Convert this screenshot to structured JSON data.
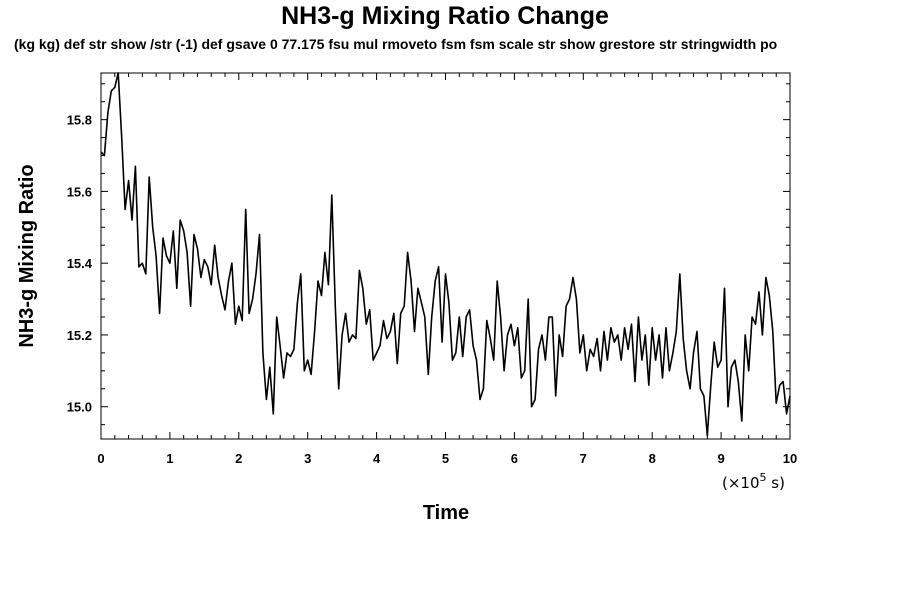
{
  "chart_data": {
    "type": "line",
    "title": "NH3-g Mixing Ratio Change",
    "subtitle": "(kg kg) def str show /str (-1) def gsave 0 77.175 fsu mul rmoveto fsm fsm scale str show grestore str stringwidth po",
    "xlabel": "Time",
    "ylabel": "NH3-g Mixing Ratio",
    "x_scale_note": "(×10",
    "x_scale_exp": "5",
    "x_scale_unit": " s)",
    "xlim": [
      0,
      10
    ],
    "ylim": [
      14.91,
      15.93
    ],
    "x_ticks": [
      "0",
      "1",
      "2",
      "3",
      "4",
      "5",
      "6",
      "7",
      "8",
      "9",
      "10"
    ],
    "y_ticks": [
      "15.0",
      "15.2",
      "15.4",
      "15.6",
      "15.8"
    ],
    "grid": false,
    "series": [
      {
        "values": [
          [
            0.0,
            15.71
          ],
          [
            0.05,
            15.7
          ],
          [
            0.1,
            15.82
          ],
          [
            0.15,
            15.88
          ],
          [
            0.2,
            15.89
          ],
          [
            0.25,
            15.93
          ],
          [
            0.3,
            15.75
          ],
          [
            0.35,
            15.55
          ],
          [
            0.4,
            15.63
          ],
          [
            0.45,
            15.52
          ],
          [
            0.5,
            15.67
          ],
          [
            0.55,
            15.39
          ],
          [
            0.6,
            15.4
          ],
          [
            0.65,
            15.37
          ],
          [
            0.7,
            15.64
          ],
          [
            0.75,
            15.5
          ],
          [
            0.8,
            15.42
          ],
          [
            0.85,
            15.26
          ],
          [
            0.9,
            15.47
          ],
          [
            0.95,
            15.42
          ],
          [
            1.0,
            15.4
          ],
          [
            1.05,
            15.49
          ],
          [
            1.1,
            15.33
          ],
          [
            1.15,
            15.52
          ],
          [
            1.2,
            15.49
          ],
          [
            1.25,
            15.43
          ],
          [
            1.3,
            15.28
          ],
          [
            1.35,
            15.48
          ],
          [
            1.4,
            15.44
          ],
          [
            1.45,
            15.36
          ],
          [
            1.5,
            15.41
          ],
          [
            1.55,
            15.39
          ],
          [
            1.6,
            15.34
          ],
          [
            1.65,
            15.45
          ],
          [
            1.7,
            15.36
          ],
          [
            1.75,
            15.31
          ],
          [
            1.8,
            15.27
          ],
          [
            1.85,
            15.35
          ],
          [
            1.9,
            15.4
          ],
          [
            1.95,
            15.23
          ],
          [
            2.0,
            15.28
          ],
          [
            2.05,
            15.24
          ],
          [
            2.1,
            15.55
          ],
          [
            2.15,
            15.26
          ],
          [
            2.2,
            15.3
          ],
          [
            2.25,
            15.37
          ],
          [
            2.3,
            15.48
          ],
          [
            2.35,
            15.15
          ],
          [
            2.4,
            15.02
          ],
          [
            2.45,
            15.11
          ],
          [
            2.5,
            14.98
          ],
          [
            2.55,
            15.25
          ],
          [
            2.6,
            15.17
          ],
          [
            2.65,
            15.08
          ],
          [
            2.7,
            15.15
          ],
          [
            2.75,
            15.14
          ],
          [
            2.8,
            15.16
          ],
          [
            2.85,
            15.29
          ],
          [
            2.9,
            15.37
          ],
          [
            2.95,
            15.1
          ],
          [
            3.0,
            15.13
          ],
          [
            3.05,
            15.09
          ],
          [
            3.1,
            15.21
          ],
          [
            3.15,
            15.35
          ],
          [
            3.2,
            15.31
          ],
          [
            3.25,
            15.43
          ],
          [
            3.3,
            15.34
          ],
          [
            3.35,
            15.59
          ],
          [
            3.4,
            15.28
          ],
          [
            3.45,
            15.05
          ],
          [
            3.5,
            15.2
          ],
          [
            3.55,
            15.26
          ],
          [
            3.6,
            15.18
          ],
          [
            3.65,
            15.2
          ],
          [
            3.7,
            15.19
          ],
          [
            3.75,
            15.38
          ],
          [
            3.8,
            15.33
          ],
          [
            3.85,
            15.23
          ],
          [
            3.9,
            15.27
          ],
          [
            3.95,
            15.13
          ],
          [
            4.0,
            15.15
          ],
          [
            4.05,
            15.17
          ],
          [
            4.1,
            15.24
          ],
          [
            4.15,
            15.19
          ],
          [
            4.2,
            15.21
          ],
          [
            4.25,
            15.26
          ],
          [
            4.3,
            15.12
          ],
          [
            4.35,
            15.26
          ],
          [
            4.4,
            15.28
          ],
          [
            4.45,
            15.43
          ],
          [
            4.5,
            15.35
          ],
          [
            4.55,
            15.21
          ],
          [
            4.6,
            15.33
          ],
          [
            4.65,
            15.29
          ],
          [
            4.7,
            15.25
          ],
          [
            4.75,
            15.09
          ],
          [
            4.8,
            15.25
          ],
          [
            4.85,
            15.35
          ],
          [
            4.9,
            15.39
          ],
          [
            4.95,
            15.18
          ],
          [
            5.0,
            15.37
          ],
          [
            5.05,
            15.29
          ],
          [
            5.1,
            15.13
          ],
          [
            5.15,
            15.15
          ],
          [
            5.2,
            15.25
          ],
          [
            5.25,
            15.14
          ],
          [
            5.3,
            15.25
          ],
          [
            5.35,
            15.27
          ],
          [
            5.4,
            15.17
          ],
          [
            5.45,
            15.13
          ],
          [
            5.5,
            15.02
          ],
          [
            5.55,
            15.05
          ],
          [
            5.6,
            15.24
          ],
          [
            5.65,
            15.19
          ],
          [
            5.7,
            15.13
          ],
          [
            5.75,
            15.35
          ],
          [
            5.8,
            15.25
          ],
          [
            5.85,
            15.1
          ],
          [
            5.9,
            15.2
          ],
          [
            5.95,
            15.23
          ],
          [
            6.0,
            15.17
          ],
          [
            6.05,
            15.22
          ],
          [
            6.1,
            15.08
          ],
          [
            6.15,
            15.1
          ],
          [
            6.2,
            15.3
          ],
          [
            6.25,
            15.0
          ],
          [
            6.3,
            15.02
          ],
          [
            6.35,
            15.16
          ],
          [
            6.4,
            15.2
          ],
          [
            6.45,
            15.13
          ],
          [
            6.5,
            15.25
          ],
          [
            6.55,
            15.25
          ],
          [
            6.6,
            15.03
          ],
          [
            6.65,
            15.2
          ],
          [
            6.7,
            15.14
          ],
          [
            6.75,
            15.28
          ],
          [
            6.8,
            15.3
          ],
          [
            6.85,
            15.36
          ],
          [
            6.9,
            15.3
          ],
          [
            6.95,
            15.15
          ],
          [
            7.0,
            15.2
          ],
          [
            7.05,
            15.1
          ],
          [
            7.1,
            15.16
          ],
          [
            7.15,
            15.14
          ],
          [
            7.2,
            15.19
          ],
          [
            7.25,
            15.1
          ],
          [
            7.3,
            15.21
          ],
          [
            7.35,
            15.13
          ],
          [
            7.4,
            15.22
          ],
          [
            7.45,
            15.18
          ],
          [
            7.5,
            15.2
          ],
          [
            7.55,
            15.13
          ],
          [
            7.6,
            15.22
          ],
          [
            7.65,
            15.16
          ],
          [
            7.7,
            15.23
          ],
          [
            7.75,
            15.07
          ],
          [
            7.8,
            15.25
          ],
          [
            7.85,
            15.13
          ],
          [
            7.9,
            15.2
          ],
          [
            7.95,
            15.06
          ],
          [
            8.0,
            15.22
          ],
          [
            8.05,
            15.13
          ],
          [
            8.1,
            15.2
          ],
          [
            8.15,
            15.08
          ],
          [
            8.2,
            15.22
          ],
          [
            8.25,
            15.1
          ],
          [
            8.3,
            15.15
          ],
          [
            8.35,
            15.21
          ],
          [
            8.4,
            15.37
          ],
          [
            8.45,
            15.19
          ],
          [
            8.5,
            15.1
          ],
          [
            8.55,
            15.05
          ],
          [
            8.6,
            15.15
          ],
          [
            8.65,
            15.21
          ],
          [
            8.7,
            15.05
          ],
          [
            8.75,
            15.03
          ],
          [
            8.8,
            14.92
          ],
          [
            8.85,
            15.06
          ],
          [
            8.9,
            15.18
          ],
          [
            8.95,
            15.11
          ],
          [
            9.0,
            15.13
          ],
          [
            9.05,
            15.33
          ],
          [
            9.1,
            15.0
          ],
          [
            9.15,
            15.11
          ],
          [
            9.2,
            15.13
          ],
          [
            9.25,
            15.07
          ],
          [
            9.3,
            14.96
          ],
          [
            9.35,
            15.2
          ],
          [
            9.4,
            15.1
          ],
          [
            9.45,
            15.25
          ],
          [
            9.5,
            15.23
          ],
          [
            9.55,
            15.32
          ],
          [
            9.6,
            15.2
          ],
          [
            9.65,
            15.36
          ],
          [
            9.7,
            15.31
          ],
          [
            9.75,
            15.21
          ],
          [
            9.8,
            15.01
          ],
          [
            9.85,
            15.06
          ],
          [
            9.9,
            15.07
          ],
          [
            9.95,
            14.98
          ],
          [
            10.0,
            15.03
          ]
        ]
      }
    ]
  }
}
